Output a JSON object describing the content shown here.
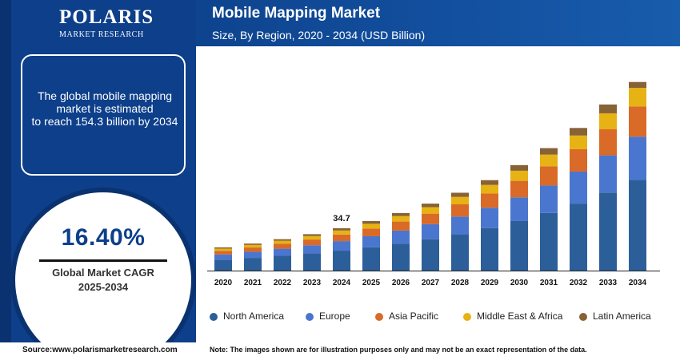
{
  "brand": {
    "logo_name": "POLARIS",
    "logo_sub": "MARKET RESEARCH"
  },
  "info": {
    "lines": [
      "The global mobile mapping",
      "market is estimated",
      "to reach 154.3 billion by 2034"
    ]
  },
  "cagr": {
    "value": "16.40%",
    "label_line1": "Global Market CAGR",
    "label_line2": "2025-2034"
  },
  "footer": {
    "source": "Source:www.polarismarketresearch.com",
    "note": "Note: The images shown are for illustration purposes only and may not be an exact representation of the data."
  },
  "colors": {
    "North America": "#2c5f99",
    "Europe": "#4a76cf",
    "Asia Pacific": "#d96a27",
    "Middle East & Africa": "#e7b213",
    "Latin America": "#876236",
    "brand_blue": "#0d3f8a"
  },
  "chart_data": {
    "type": "bar",
    "stacked": true,
    "title": "Mobile Mapping Market",
    "subtitle": "Size, By Region, 2020 - 2034 (USD Billion)",
    "categories": [
      "2020",
      "2021",
      "2022",
      "2023",
      "2024",
      "2025",
      "2026",
      "2027",
      "2028",
      "2029",
      "2030",
      "2031",
      "2032",
      "2033",
      "2034"
    ],
    "series": [
      {
        "name": "North America",
        "values": [
          8.9,
          10.4,
          12.1,
          14.0,
          16.3,
          19.0,
          22.1,
          25.7,
          29.9,
          34.8,
          40.5,
          47.1,
          54.8,
          63.8,
          74.1
        ]
      },
      {
        "name": "Europe",
        "values": [
          4.3,
          5.0,
          5.8,
          6.7,
          7.8,
          9.1,
          10.6,
          12.3,
          14.3,
          16.6,
          19.4,
          22.5,
          26.2,
          30.5,
          35.5
        ]
      },
      {
        "name": "Asia Pacific",
        "values": [
          3.0,
          3.5,
          4.0,
          4.7,
          5.4,
          6.3,
          7.4,
          8.6,
          10.0,
          11.6,
          13.5,
          15.7,
          18.3,
          21.3,
          24.7
        ]
      },
      {
        "name": "Middle East & Africa",
        "values": [
          1.8,
          2.1,
          2.5,
          2.9,
          3.3,
          3.9,
          4.5,
          5.3,
          6.1,
          7.1,
          8.3,
          9.6,
          11.2,
          13.1,
          15.2
        ]
      },
      {
        "name": "Latin America",
        "values": [
          1.0,
          1.1,
          1.3,
          1.5,
          1.9,
          2.2,
          2.5,
          2.9,
          3.4,
          3.9,
          4.6,
          5.3,
          6.2,
          7.2,
          4.8
        ]
      }
    ],
    "annotations": [
      {
        "category": "2024",
        "text": "34.7"
      }
    ],
    "ylim": [
      0,
      160
    ],
    "yaxis_visible": false,
    "grid": false,
    "legend_position": "bottom"
  }
}
